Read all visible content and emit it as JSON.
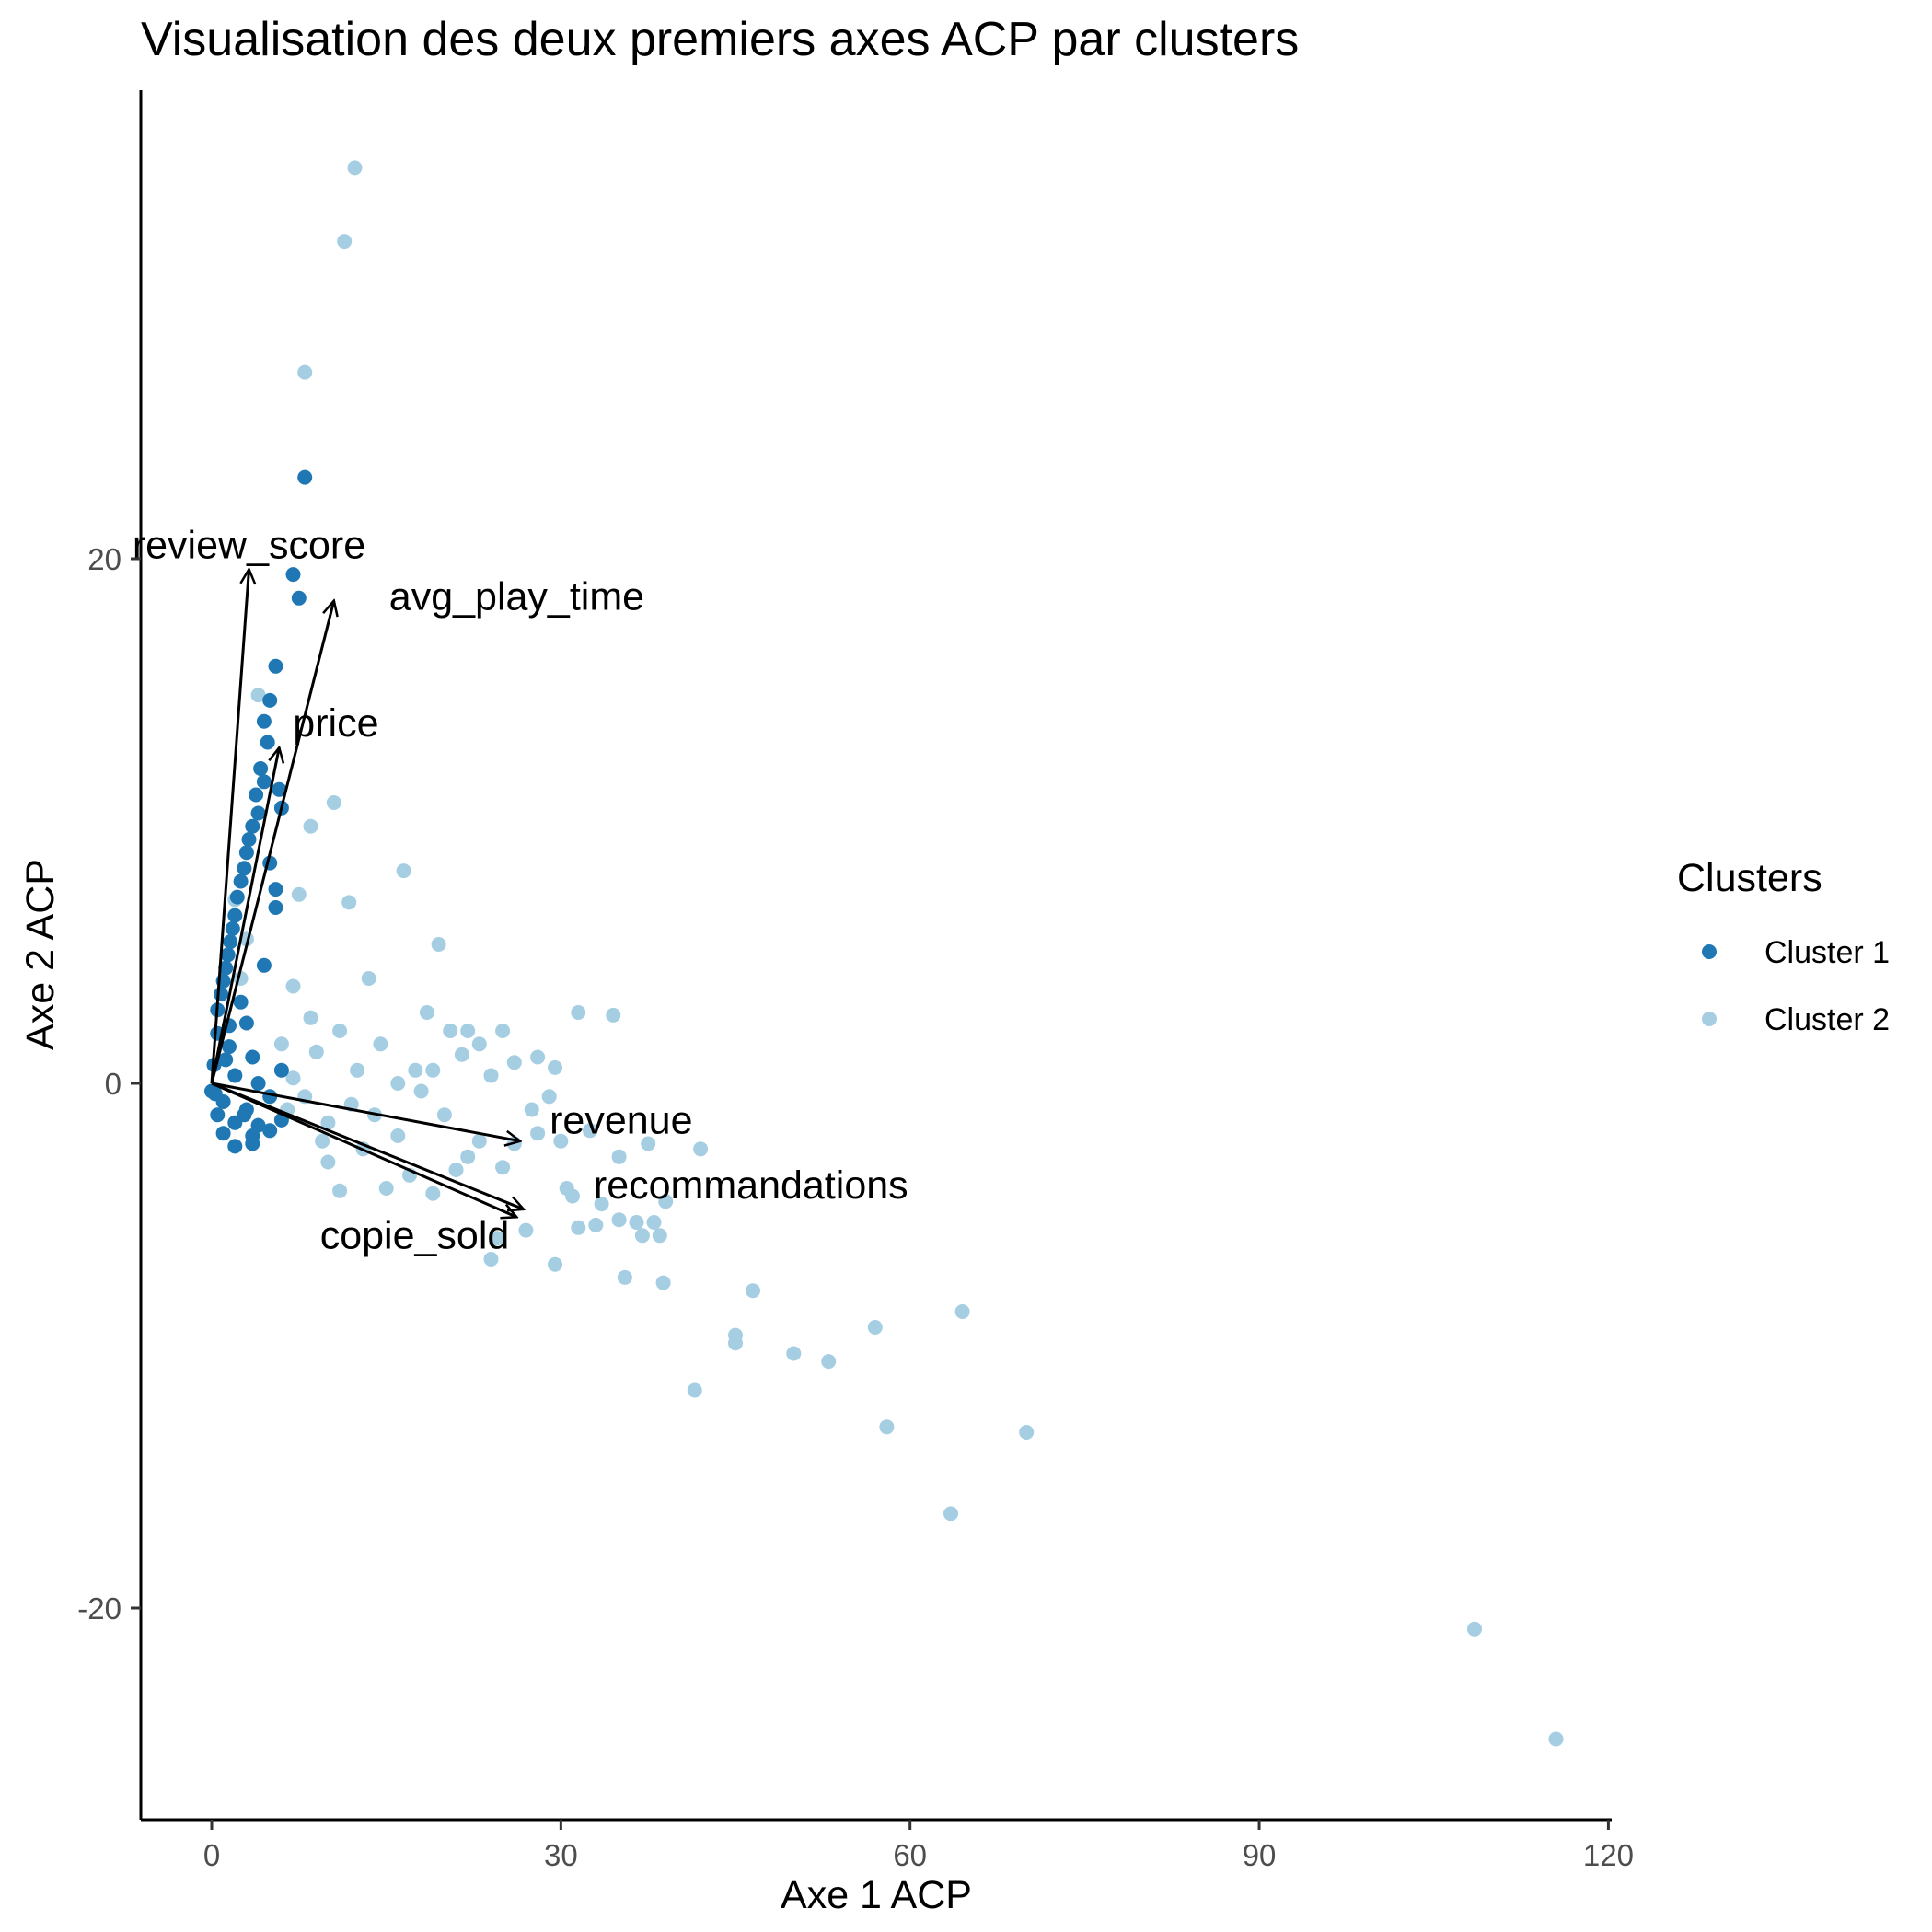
{
  "chart_data": {
    "type": "scatter",
    "title": "Visualisation des deux premiers axes ACP par clusters",
    "xlabel": "Axe 1 ACP",
    "ylabel": "Axe 2 ACP",
    "xlim": [
      -5,
      125
    ],
    "ylim": [
      -29,
      35
    ],
    "xticks": [
      0,
      30,
      60,
      90,
      120
    ],
    "yticks": [
      -20,
      0,
      20
    ],
    "grid": false,
    "legend": {
      "title": "Clusters",
      "position": "right",
      "entries": [
        "Cluster 1",
        "Cluster 2"
      ]
    },
    "colors": {
      "Cluster 1": "#1f78b4",
      "Cluster 2": "#a6cee3"
    },
    "series": [
      {
        "name": "Cluster 1",
        "points": [
          [
            8,
            23.1
          ],
          [
            7,
            19.4
          ],
          [
            7.5,
            18.5
          ],
          [
            5.5,
            15.9
          ],
          [
            5,
            14.6
          ],
          [
            4.5,
            13.8
          ],
          [
            4.8,
            13.0
          ],
          [
            4.2,
            12.0
          ],
          [
            4.5,
            11.5
          ],
          [
            5.8,
            11.2
          ],
          [
            3.8,
            11.0
          ],
          [
            4.0,
            10.3
          ],
          [
            3.5,
            9.8
          ],
          [
            6,
            10.5
          ],
          [
            3.2,
            9.3
          ],
          [
            3.0,
            8.8
          ],
          [
            5.0,
            8.4
          ],
          [
            2.8,
            8.2
          ],
          [
            2.5,
            7.7
          ],
          [
            5.5,
            7.4
          ],
          [
            2.2,
            7.1
          ],
          [
            5.5,
            6.7
          ],
          [
            2.0,
            6.4
          ],
          [
            1.8,
            5.9
          ],
          [
            1.6,
            5.4
          ],
          [
            1.4,
            4.9
          ],
          [
            4.5,
            4.5
          ],
          [
            1.2,
            4.4
          ],
          [
            1.0,
            3.9
          ],
          [
            0.8,
            3.4
          ],
          [
            2.5,
            3.1
          ],
          [
            0.5,
            2.8
          ],
          [
            3.0,
            2.3
          ],
          [
            0.5,
            1.9
          ],
          [
            1.5,
            1.4
          ],
          [
            3.5,
            1.0
          ],
          [
            0.2,
            0.7
          ],
          [
            2.0,
            0.3
          ],
          [
            4.0,
            0.0
          ],
          [
            0.0,
            -0.3
          ],
          [
            1.0,
            -0.7
          ],
          [
            3.0,
            -1.0
          ],
          [
            0.5,
            -1.2
          ],
          [
            2.0,
            -1.5
          ],
          [
            4.0,
            -1.6
          ],
          [
            1.0,
            -1.9
          ],
          [
            3.5,
            -2.0
          ],
          [
            2.0,
            -2.4
          ],
          [
            3.5,
            -2.3
          ],
          [
            5.0,
            -1.8
          ],
          [
            6.0,
            -1.4
          ],
          [
            5.0,
            -0.5
          ],
          [
            6.0,
            0.5
          ],
          [
            1.5,
            2.2
          ],
          [
            0.3,
            -0.4
          ],
          [
            2.8,
            -1.2
          ],
          [
            1.2,
            0.9
          ]
        ]
      },
      {
        "name": "Cluster 2",
        "points": [
          [
            12.3,
            34.9
          ],
          [
            11.4,
            32.1
          ],
          [
            8,
            27.1
          ],
          [
            4,
            14.8
          ],
          [
            10.5,
            10.7
          ],
          [
            8.5,
            9.8
          ],
          [
            16.5,
            8.1
          ],
          [
            7.5,
            7.2
          ],
          [
            11.8,
            6.9
          ],
          [
            2,
            7.0
          ],
          [
            19.5,
            5.3
          ],
          [
            13.5,
            4.0
          ],
          [
            7,
            3.7
          ],
          [
            31.5,
            2.7
          ],
          [
            34.5,
            2.6
          ],
          [
            18.5,
            2.7
          ],
          [
            25,
            2.0
          ],
          [
            22,
            2.0
          ],
          [
            28,
            1.0
          ],
          [
            29.5,
            0.6
          ],
          [
            21.5,
            1.1
          ],
          [
            24,
            0.3
          ],
          [
            19,
            0.5
          ],
          [
            17.5,
            0.5
          ],
          [
            27.5,
            -1.0
          ],
          [
            26,
            -2.3
          ],
          [
            28,
            -1.9
          ],
          [
            30,
            -2.2
          ],
          [
            32.5,
            -1.8
          ],
          [
            37.5,
            -2.3
          ],
          [
            42,
            -2.5
          ],
          [
            35,
            -2.8
          ],
          [
            25,
            -3.2
          ],
          [
            30.5,
            -4.0
          ],
          [
            31,
            -4.3
          ],
          [
            33.5,
            -4.6
          ],
          [
            39,
            -4.5
          ],
          [
            35,
            -5.2
          ],
          [
            36.5,
            -5.3
          ],
          [
            38,
            -5.3
          ],
          [
            31.5,
            -5.5
          ],
          [
            33,
            -5.4
          ],
          [
            37,
            -5.8
          ],
          [
            38.5,
            -5.8
          ],
          [
            27,
            -5.6
          ],
          [
            24,
            -6.7
          ],
          [
            29.5,
            -6.9
          ],
          [
            35.5,
            -7.4
          ],
          [
            38.8,
            -7.6
          ],
          [
            46.5,
            -7.9
          ],
          [
            45,
            -9.6
          ],
          [
            45,
            -9.9
          ],
          [
            57,
            -9.3
          ],
          [
            64.5,
            -8.7
          ],
          [
            50,
            -10.3
          ],
          [
            53,
            -10.6
          ],
          [
            41.5,
            -11.7
          ],
          [
            58,
            -13.1
          ],
          [
            70,
            -13.3
          ],
          [
            63.5,
            -16.4
          ],
          [
            108.5,
            -20.8
          ],
          [
            115.5,
            -25.0
          ],
          [
            10,
            -1.5
          ],
          [
            12,
            -0.8
          ],
          [
            14,
            -1.2
          ],
          [
            16,
            -2.0
          ],
          [
            18,
            -0.3
          ],
          [
            20,
            -1.2
          ],
          [
            22,
            -2.8
          ],
          [
            15,
            -4.0
          ],
          [
            17,
            -3.5
          ],
          [
            19,
            -4.2
          ],
          [
            21,
            -3.3
          ],
          [
            23,
            -2.2
          ],
          [
            10,
            -3.0
          ],
          [
            13,
            -2.5
          ],
          [
            8,
            -0.5
          ],
          [
            9,
            1.2
          ],
          [
            11,
            2.0
          ],
          [
            6,
            1.5
          ],
          [
            7,
            0.2
          ],
          [
            14.5,
            1.5
          ],
          [
            12.5,
            0.5
          ],
          [
            16,
            0.0
          ],
          [
            9.5,
            -2.2
          ],
          [
            26,
            0.8
          ],
          [
            23,
            1.5
          ],
          [
            20.5,
            2.0
          ],
          [
            6.5,
            -1.0
          ],
          [
            8.5,
            2.5
          ],
          [
            11,
            -4.1
          ],
          [
            3.0,
            5.5
          ],
          [
            2.5,
            4.0
          ],
          [
            24.5,
            -5.9
          ],
          [
            29,
            -0.5
          ]
        ]
      }
    ],
    "loadings": [
      {
        "label": "review_score",
        "x": 3.2,
        "y": 19.6
      },
      {
        "label": "avg_play_time",
        "x": 10.5,
        "y": 18.4
      },
      {
        "label": "price",
        "x": 5.8,
        "y": 12.8
      },
      {
        "label": "revenue",
        "x": 26.5,
        "y": -2.2
      },
      {
        "label": "recommandations",
        "x": 26.8,
        "y": -4.8
      },
      {
        "label": "copie_sold",
        "x": 26.2,
        "y": -5.1
      }
    ]
  }
}
